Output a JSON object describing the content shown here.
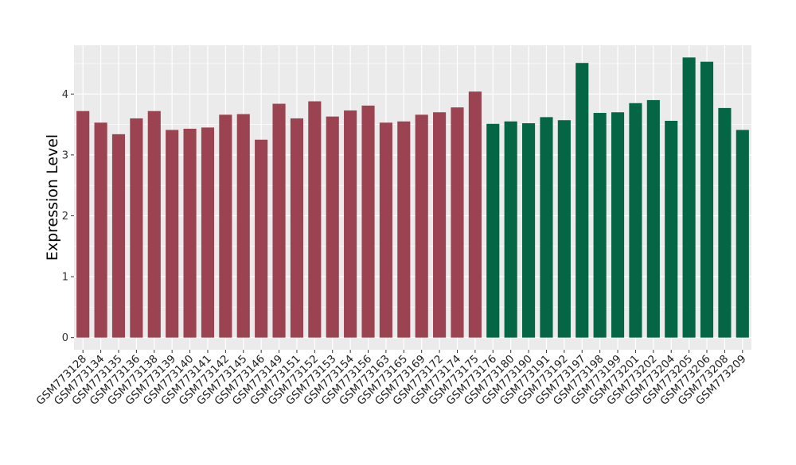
{
  "chart_data": {
    "type": "bar",
    "title": "",
    "xlabel": "",
    "ylabel": "Expression Level",
    "ylim": [
      -0.2,
      4.8
    ],
    "yticks": [
      0,
      1,
      2,
      3,
      4
    ],
    "grid": true,
    "legend": "none",
    "colors": {
      "group1": "#9b4350",
      "group2": "#046645",
      "panel": "#ebebeb",
      "grid": "#ffffff"
    },
    "categories": [
      "GSM773128",
      "GSM773134",
      "GSM773135",
      "GSM773136",
      "GSM773138",
      "GSM773139",
      "GSM773140",
      "GSM773141",
      "GSM773142",
      "GSM773145",
      "GSM773146",
      "GSM773149",
      "GSM773151",
      "GSM773152",
      "GSM773153",
      "GSM773154",
      "GSM773156",
      "GSM773163",
      "GSM773165",
      "GSM773169",
      "GSM773172",
      "GSM773174",
      "GSM773175",
      "GSM773176",
      "GSM773180",
      "GSM773190",
      "GSM773191",
      "GSM773192",
      "GSM773197",
      "GSM773198",
      "GSM773199",
      "GSM773201",
      "GSM773202",
      "GSM773204",
      "GSM773205",
      "GSM773206",
      "GSM773208",
      "GSM773209"
    ],
    "values": [
      3.72,
      3.53,
      3.34,
      3.6,
      3.72,
      3.41,
      3.43,
      3.45,
      3.66,
      3.67,
      3.25,
      3.84,
      3.6,
      3.88,
      3.63,
      3.73,
      3.81,
      3.53,
      3.55,
      3.66,
      3.7,
      3.78,
      4.04,
      3.51,
      3.55,
      3.52,
      3.62,
      3.57,
      4.51,
      3.69,
      3.7,
      3.85,
      3.9,
      3.56,
      4.6,
      4.53,
      3.77,
      3.41
    ],
    "groups": [
      1,
      1,
      1,
      1,
      1,
      1,
      1,
      1,
      1,
      1,
      1,
      1,
      1,
      1,
      1,
      1,
      1,
      1,
      1,
      1,
      1,
      1,
      1,
      2,
      2,
      2,
      2,
      2,
      2,
      2,
      2,
      2,
      2,
      2,
      2,
      2,
      2,
      2
    ]
  }
}
